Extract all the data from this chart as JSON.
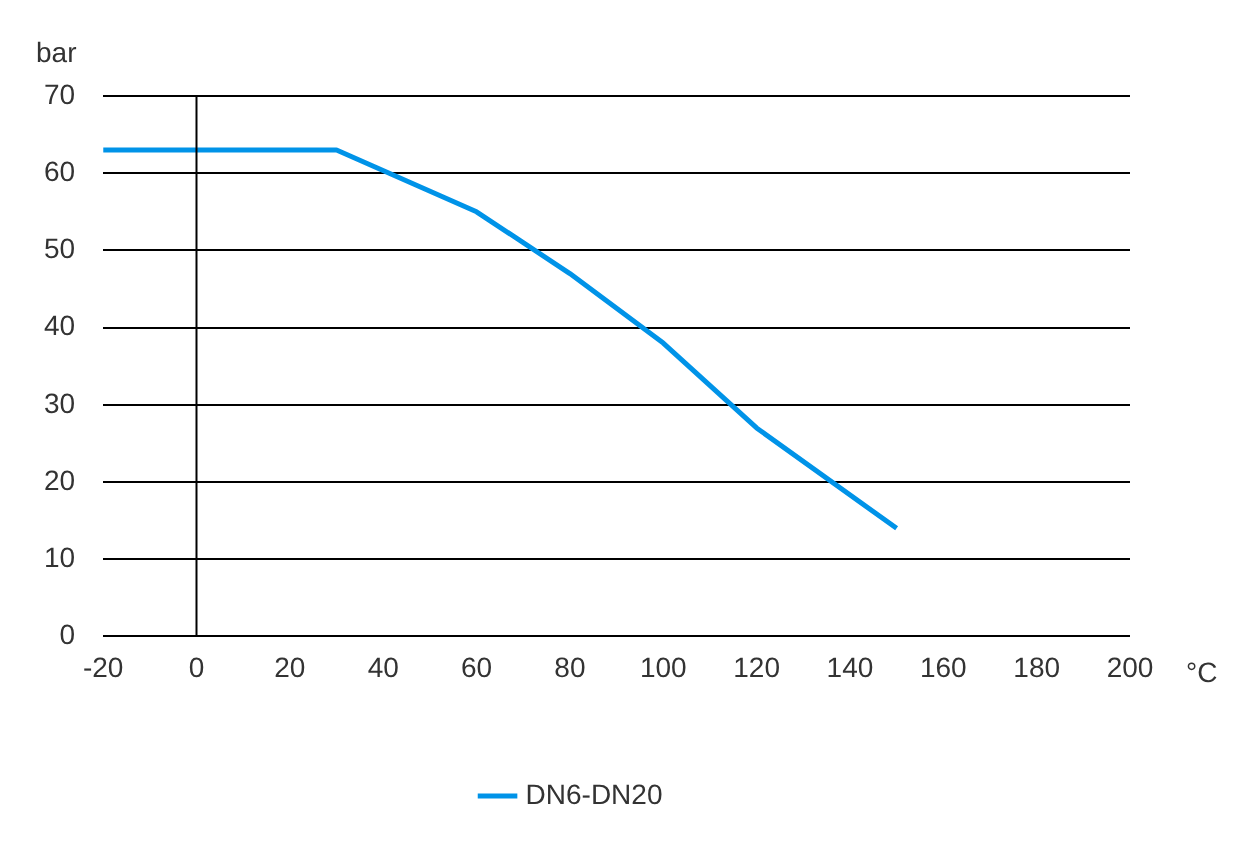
{
  "chart_data": {
    "type": "line",
    "xlabel": "°C",
    "ylabel": "bar",
    "xlim": [
      -20,
      200
    ],
    "xticks": [
      -20,
      0,
      20,
      40,
      60,
      80,
      100,
      120,
      140,
      160,
      180,
      200
    ],
    "ylim": [
      0,
      70
    ],
    "yticks": [
      0,
      10,
      20,
      30,
      40,
      50,
      60,
      70
    ],
    "grid": "y",
    "legend": "bottom",
    "marker": "none",
    "line_style": "solid",
    "ref_lines": [
      {
        "axis": "x",
        "value": 0,
        "color": "#000000"
      }
    ],
    "series": [
      {
        "name": "DN6-DN20",
        "color": "#0093e8",
        "x": [
          -20,
          30,
          60,
          80,
          100,
          120,
          150
        ],
        "values": [
          63,
          63,
          55,
          47,
          38,
          27,
          14
        ]
      }
    ]
  }
}
